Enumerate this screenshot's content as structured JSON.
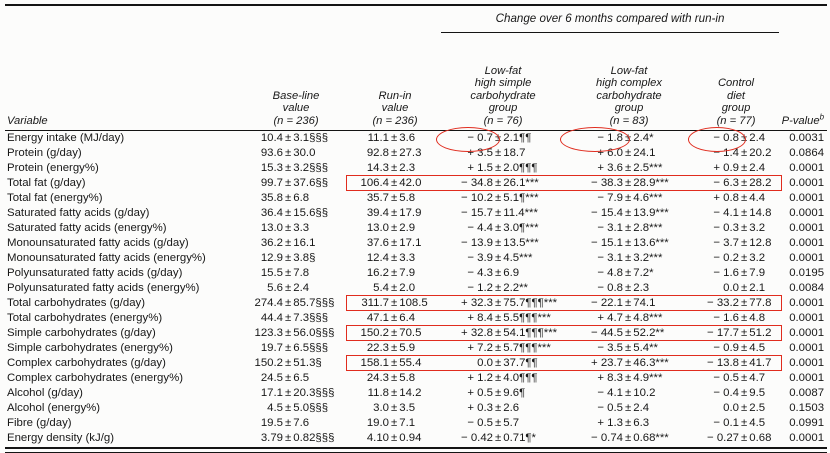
{
  "annotation_color": "#e02c1e",
  "table": {
    "spanner": "Change over 6 months compared with run-in",
    "columns": [
      {
        "key": "variable",
        "lines": [
          "Variable"
        ]
      },
      {
        "key": "baseline",
        "lines": [
          "Base-line",
          "value",
          "(n = 236)"
        ]
      },
      {
        "key": "runin",
        "lines": [
          "Run-in",
          "value",
          "(n = 236)"
        ]
      },
      {
        "key": "simple",
        "lines": [
          "Low-fat",
          "high simple",
          "carbohydrate",
          "group",
          "(n = 76)"
        ]
      },
      {
        "key": "complex",
        "lines": [
          "Low-fat",
          "high complex",
          "carbohydrate",
          "group",
          "(n = 83)"
        ]
      },
      {
        "key": "control",
        "lines": [
          "Control",
          "diet",
          "group",
          "(n = 77)"
        ]
      },
      {
        "key": "p",
        "lines": [
          "P-value"
        ],
        "sup": "b"
      }
    ],
    "rows": [
      {
        "variable": "Energy intake (MJ/day)",
        "baseline": "10.4 ± 3.1§§§",
        "runin": "11.1 ± 3.6",
        "simple": "− 0.7 ± 2.1¶¶",
        "complex": "− 1.8 ± 2.4*",
        "control": "− 0.8 ± 2.4",
        "p": "0.0031",
        "red_box": false,
        "red_ellipses": [
          "simple",
          "complex",
          "control"
        ]
      },
      {
        "variable": "Protein (g/day)",
        "baseline": "93.6 ± 30.0",
        "runin": "92.8 ± 27.3",
        "simple": "+ 3.5 ± 18.7",
        "complex": "+ 6.0 ± 24.1",
        "control": "− 1.4 ± 20.2",
        "p": "0.0864",
        "red_box": false,
        "red_ellipses": []
      },
      {
        "variable": "Protein (energy%)",
        "baseline": "15.3 ± 3.2§§§",
        "runin": "14.3 ± 2.3",
        "simple": "+ 1.5 ± 2.0¶¶¶",
        "complex": "+ 3.6 ± 2.5***",
        "control": "+ 0.9 ± 2.4",
        "p": "0.0001",
        "red_box": false,
        "red_ellipses": []
      },
      {
        "variable": "Total fat (g/day)",
        "baseline": "99.7 ± 37.6§§",
        "runin": "106.4 ± 42.0",
        "simple": "− 34.8 ± 26.1***",
        "complex": "− 38.3 ± 28.9***",
        "control": "− 6.3 ± 28.2",
        "p": "0.0001",
        "red_box": true,
        "red_ellipses": []
      },
      {
        "variable": "Total fat (energy%)",
        "baseline": "35.8 ± 6.8",
        "runin": "35.7 ± 5.8",
        "simple": "− 10.2 ± 5.1¶***",
        "complex": "− 7.9 ± 4.6***",
        "control": "+ 0.8 ± 4.4",
        "p": "0.0001",
        "red_box": false,
        "red_ellipses": []
      },
      {
        "variable": "Saturated fatty acids (g/day)",
        "baseline": "36.4 ± 15.6§§",
        "runin": "39.4 ± 17.9",
        "simple": "− 15.7 ± 11.4***",
        "complex": "− 15.4 ± 13.9***",
        "control": "− 4.1 ± 14.8",
        "p": "0.0001",
        "red_box": false,
        "red_ellipses": []
      },
      {
        "variable": "Saturated fatty acids (energy%)",
        "baseline": "13.0 ± 3.3",
        "runin": "13.0 ± 2.9",
        "simple": "− 4.4 ± 3.0¶***",
        "complex": "− 3.1 ± 2.8***",
        "control": "− 0.3 ± 3.2",
        "p": "0.0001",
        "red_box": false,
        "red_ellipses": []
      },
      {
        "variable": "Monounsaturated fatty acids (g/day)",
        "baseline": "36.2 ± 16.1",
        "runin": "37.6 ± 17.1",
        "simple": "− 13.9 ± 13.5***",
        "complex": "− 15.1 ± 13.6***",
        "control": "− 3.7 ± 12.8",
        "p": "0.0001",
        "red_box": false,
        "red_ellipses": []
      },
      {
        "variable": "Monounsaturated fatty acids (energy%)",
        "baseline": "12.9 ± 3.8§",
        "runin": "12.4 ± 3.3",
        "simple": "− 3.9 ± 4.5***",
        "complex": "− 3.1 ± 3.2***",
        "control": "− 0.2 ± 3.2",
        "p": "0.0001",
        "red_box": false,
        "red_ellipses": []
      },
      {
        "variable": "Polyunsaturated fatty acids (g/day)",
        "baseline": "15.5 ± 7.8",
        "runin": "16.2 ± 7.9",
        "simple": "− 4.3 ± 6.9",
        "complex": "− 4.8 ± 7.2*",
        "control": "− 1.6 ± 7.9",
        "p": "0.0195",
        "red_box": false,
        "red_ellipses": []
      },
      {
        "variable": "Polyunsaturated fatty acids (energy%)",
        "baseline": "5.6 ± 2.4",
        "runin": "5.4 ± 2.0",
        "simple": "− 1.2 ± 2.2**",
        "complex": "− 0.8 ± 2.3",
        "control": "0.0 ± 2.1",
        "p": "0.0084",
        "red_box": false,
        "red_ellipses": []
      },
      {
        "variable": "Total carbohydrates (g/day)",
        "baseline": "274.4 ± 85.7§§§",
        "runin": "311.7 ± 108.5",
        "simple": "+ 32.3 ± 75.7¶¶¶***",
        "complex": "− 22.1 ± 74.1",
        "control": "− 33.2 ± 77.8",
        "p": "0.0001",
        "red_box": true,
        "red_ellipses": []
      },
      {
        "variable": "Total carbohydrates (energy%)",
        "baseline": "44.4 ± 7.3§§§",
        "runin": "47.1 ± 6.4",
        "simple": "+ 8.4 ± 5.5¶¶¶***",
        "complex": "+ 4.7 ± 4.8***",
        "control": "− 1.6 ± 4.8",
        "p": "0.0001",
        "red_box": false,
        "red_ellipses": []
      },
      {
        "variable": "Simple carbohydrates (g/day)",
        "baseline": "123.3 ± 56.0§§§",
        "runin": "150.2 ± 70.5",
        "simple": "+ 32.8 ± 54.1¶¶¶***",
        "complex": "− 44.5 ± 52.2**",
        "control": "− 17.7 ± 51.2",
        "p": "0.0001",
        "red_box": true,
        "red_ellipses": []
      },
      {
        "variable": "Simple carbohydrates (energy%)",
        "baseline": "19.7 ± 6.5§§§",
        "runin": "22.3 ± 5.9",
        "simple": "+ 7.2 ± 5.7¶¶¶***",
        "complex": "− 3.5 ± 5.4**",
        "control": "− 0.9 ± 4.5",
        "p": "0.0001",
        "red_box": false,
        "red_ellipses": []
      },
      {
        "variable": "Complex carbohydrates (g/day)",
        "baseline": "150.2 ± 51.3§",
        "runin": "158.1 ± 55.4",
        "simple": "0.0 ± 37.7¶¶",
        "complex": "+ 23.7 ± 46.3***",
        "control": "− 13.8 ± 41.7",
        "p": "0.0001",
        "red_box": true,
        "red_ellipses": []
      },
      {
        "variable": "Complex carbohydrates (energy%)",
        "baseline": "24.5 ± 6.5",
        "runin": "24.3 ± 5.8",
        "simple": "+ 1.2 ± 4.0¶¶¶",
        "complex": "+ 8.3 ± 4.9***",
        "control": "− 0.5 ± 4.7",
        "p": "0.0001",
        "red_box": false,
        "red_ellipses": []
      },
      {
        "variable": "Alcohol (g/day)",
        "baseline": "17.1 ± 20.3§§§",
        "runin": "11.8 ± 14.2",
        "simple": "+ 0.5 ± 9.6¶",
        "complex": "− 4.1 ± 10.2",
        "control": "− 0.4 ± 9.5",
        "p": "0.0087",
        "red_box": false,
        "red_ellipses": []
      },
      {
        "variable": "Alcohol (energy%)",
        "baseline": "4.5 ± 5.0§§§",
        "runin": "3.0 ± 3.5",
        "simple": "+ 0.3 ± 2.6",
        "complex": "− 0.5 ± 2.4",
        "control": "0.0 ± 2.5",
        "p": "0.1503",
        "red_box": false,
        "red_ellipses": []
      },
      {
        "variable": "Fibre (g/day)",
        "baseline": "19.5 ± 7.6",
        "runin": "19.0 ± 7.1",
        "simple": "− 0.5 ± 5.7",
        "complex": "+ 1.3 ± 6.3",
        "control": "− 0.1 ± 4.5",
        "p": "0.0991",
        "red_box": false,
        "red_ellipses": []
      },
      {
        "variable": "Energy density (kJ/g)",
        "baseline": "3.79 ± 0.82§§§",
        "runin": "4.10 ± 0.94",
        "simple": "− 0.42 ± 0.71¶*",
        "complex": "− 0.74 ± 0.68***",
        "control": "− 0.27 ± 0.68",
        "p": "0.0001",
        "red_box": false,
        "red_ellipses": []
      }
    ]
  }
}
